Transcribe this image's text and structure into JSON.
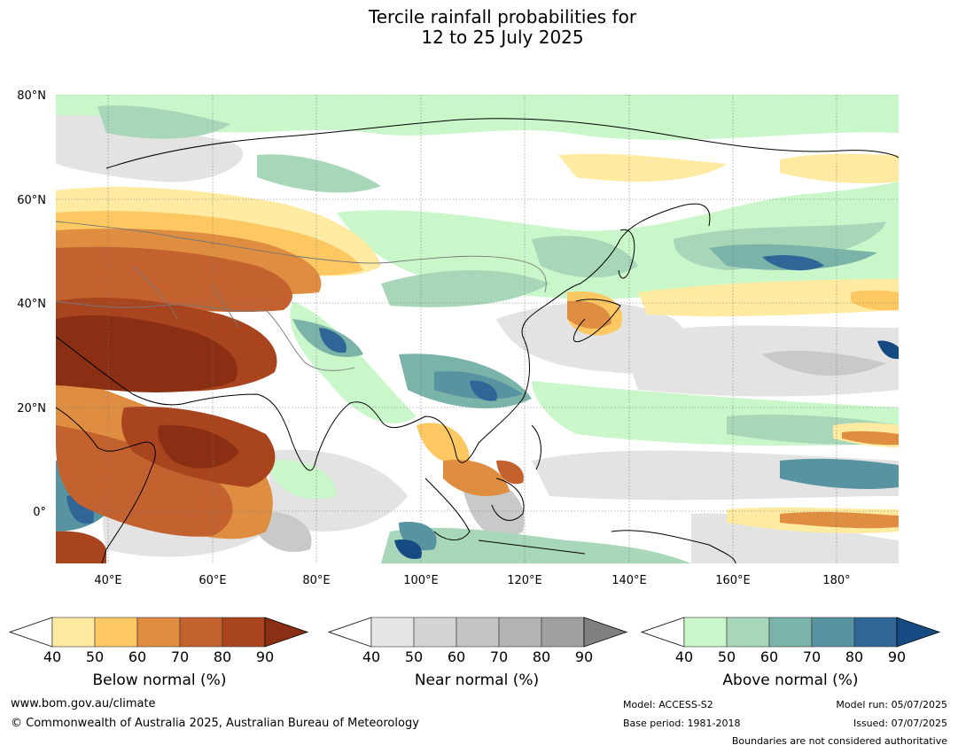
{
  "title_line1": "Tercile rainfall probabilities for",
  "title_line2": "12 to 25 July 2025",
  "axes": {
    "lat_labels": [
      "80°N",
      "60°N",
      "40°N",
      "20°N",
      "0°"
    ],
    "lon_labels": [
      "40°E",
      "60°E",
      "80°E",
      "100°E",
      "120°E",
      "140°E",
      "160°E",
      "180°"
    ]
  },
  "colorbars": [
    {
      "title": "Below normal (%)",
      "ticks": [
        "40",
        "50",
        "60",
        "70",
        "80",
        "90"
      ],
      "colors": [
        "#ffffff",
        "#feeaa0",
        "#fdc862",
        "#df8e41",
        "#c4622f",
        "#a8451f",
        "#8a2f14"
      ]
    },
    {
      "title": "Near normal (%)",
      "ticks": [
        "40",
        "50",
        "60",
        "70",
        "80",
        "90"
      ],
      "colors": [
        "#ffffff",
        "#e6e6e6",
        "#d4d4d4",
        "#c4c4c4",
        "#b3b3b3",
        "#a0a0a0",
        "#808080"
      ]
    },
    {
      "title": "Above normal (%)",
      "ticks": [
        "40",
        "50",
        "60",
        "70",
        "80",
        "90"
      ],
      "colors": [
        "#ffffff",
        "#c9f7c9",
        "#a7d7b8",
        "#7ab3a8",
        "#5793a0",
        "#2f6597",
        "#154a83"
      ]
    }
  ],
  "footer": {
    "website": "www.bom.gov.au/climate",
    "copyright": "© Commonwealth of Australia 2025, Australian Bureau of Meteorology",
    "model": "Model: ACCESS-S2",
    "base_period": "Base period: 1981-2018",
    "model_run": "Model run: 05/07/2025",
    "issued": "Issued: 07/07/2025",
    "disclaimer": "Boundaries are not considered authoritative"
  }
}
